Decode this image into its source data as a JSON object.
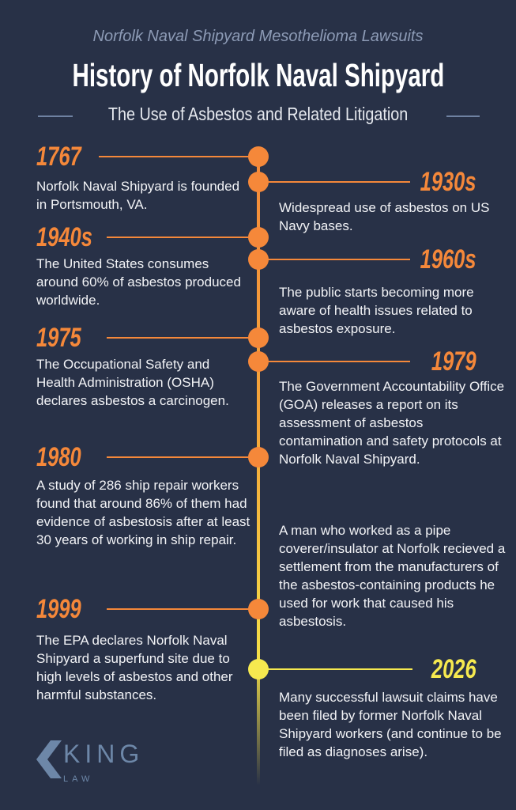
{
  "header": {
    "kicker": "Norfolk Naval Shipyard Mesothelioma Lawsuits",
    "title": "History of Norfolk Naval Shipyard",
    "subtitle": "The Use of Asbestos and Related Litigation"
  },
  "colors": {
    "background": "#283147",
    "accent": "#f5883a",
    "highlight": "#f6e94f"
  },
  "timeline": [
    {
      "year": "1767",
      "text": "Norfolk Naval Shipyard is founded in Portsmouth, VA."
    },
    {
      "year": "1930s",
      "text": "Widespread use of asbestos on US Navy bases."
    },
    {
      "year": "1940s",
      "text": "The United States consumes around 60% of asbestos produced worldwide."
    },
    {
      "year": "1960s",
      "text": "The public starts becoming more aware of health issues related to asbestos exposure."
    },
    {
      "year": "1975",
      "text": "The Occupational Safety and Health Administration (OSHA) declares asbestos a carcinogen."
    },
    {
      "year": "1979",
      "text": "The Government Accountability Office (GOA) releases a report on its assessment of asbestos contamination and safety protocols at Norfolk Naval Shipyard."
    },
    {
      "year": "1980",
      "text": "A study of 286 ship repair workers found that around 86% of them had evidence of asbestosis after at least 30 years of working in ship repair."
    },
    {
      "year": "",
      "text": "A man who worked as a pipe coverer/insulator at Norfolk recieved a settlement from the manufacturers of the asbestos-containing products he used for work that caused his asbestosis."
    },
    {
      "year": "1999",
      "text": "The EPA declares Norfolk Naval Shipyard a superfund site due to high levels of asbestos and other harmful substances."
    },
    {
      "year": "2026",
      "text": "Many successful lawsuit claims have been filed by former Norfolk Naval Shipyard workers (and continue to be filed as diagnoses arise)."
    }
  ],
  "logo": {
    "name": "KING",
    "tagline": "LAW"
  }
}
